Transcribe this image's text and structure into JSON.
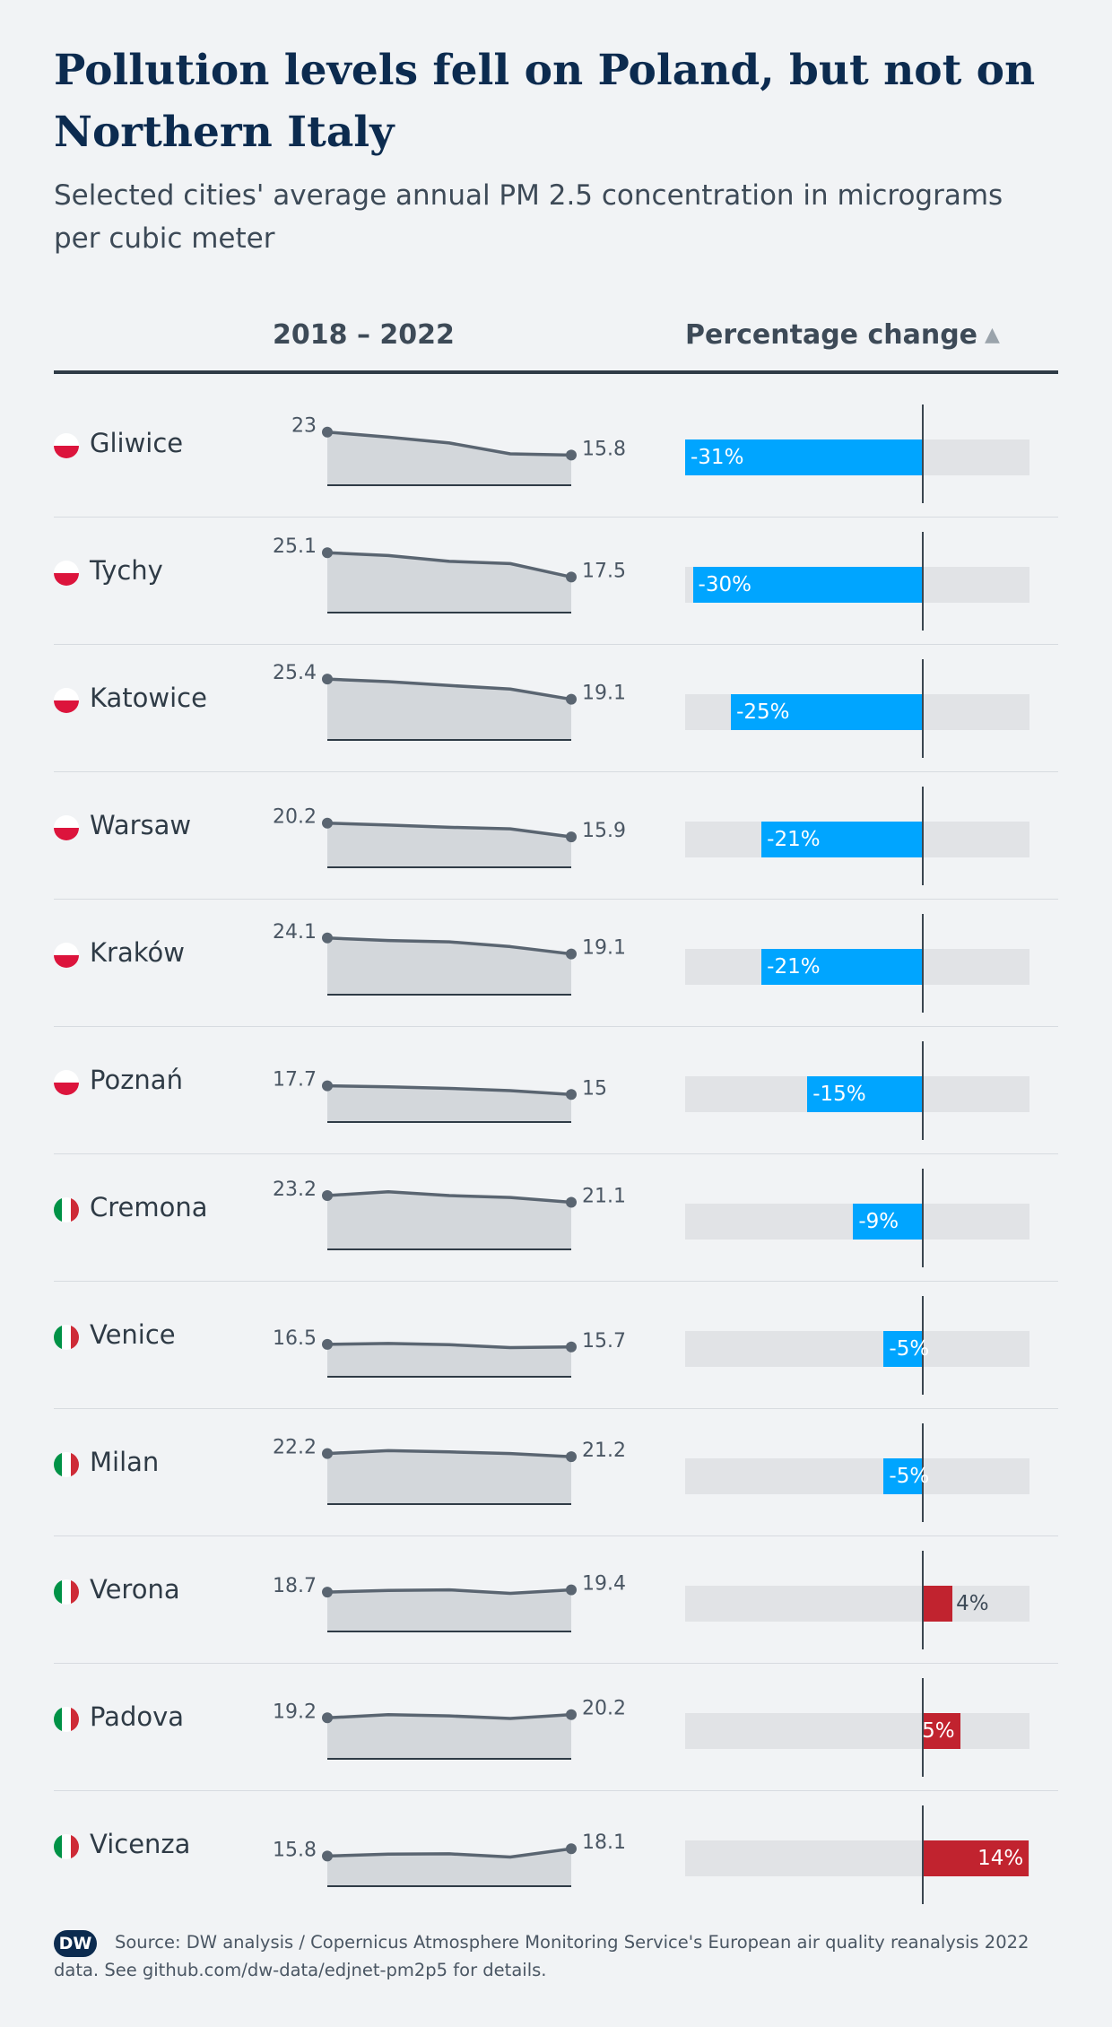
{
  "title": "Pollution levels fell on Poland, but not on Northern Italy",
  "subtitle": "Selected cities' average annual PM 2.5 concentration in micrograms per cubic meter",
  "columns": {
    "trend": "2018 – 2022",
    "change": "Percentage change",
    "sort_icon": "triangle-up-icon"
  },
  "colors": {
    "decrease": "#00a5ff",
    "increase": "#c1232f",
    "area": "#d3d7db",
    "line": "#5a6571",
    "title": "#0c2b4f"
  },
  "chart_data": {
    "type": "line",
    "x": [
      2018,
      2019,
      2020,
      2021,
      2022
    ],
    "axis_label": "2018 – 2022",
    "series": [
      {
        "name": "Gliwice",
        "country": "Poland",
        "flag": "poland-flag-icon",
        "values": [
          23,
          21.4,
          19.6,
          16.2,
          15.8
        ],
        "start_label": "23",
        "end_label": "15.8",
        "change": -31,
        "change_label": "-31%"
      },
      {
        "name": "Tychy",
        "country": "Poland",
        "flag": "poland-flag-icon",
        "values": [
          25.1,
          24.2,
          22.4,
          21.7,
          17.5
        ],
        "start_label": "25.1",
        "end_label": "17.5",
        "change": -30,
        "change_label": "-30%"
      },
      {
        "name": "Katowice",
        "country": "Poland",
        "flag": "poland-flag-icon",
        "values": [
          25.4,
          24.6,
          23.4,
          22.3,
          19.1
        ],
        "start_label": "25.4",
        "end_label": "19.1",
        "change": -25,
        "change_label": "-25%"
      },
      {
        "name": "Warsaw",
        "country": "Poland",
        "flag": "poland-flag-icon",
        "values": [
          20.2,
          19.6,
          18.9,
          18.4,
          15.9
        ],
        "start_label": "20.2",
        "end_label": "15.9",
        "change": -21,
        "change_label": "-21%"
      },
      {
        "name": "Kraków",
        "country": "Poland",
        "flag": "poland-flag-icon",
        "values": [
          24.1,
          23.3,
          22.9,
          21.4,
          19.1
        ],
        "start_label": "24.1",
        "end_label": "19.1",
        "change": -21,
        "change_label": "-21%"
      },
      {
        "name": "Poznań",
        "country": "Poland",
        "flag": "poland-flag-icon",
        "values": [
          17.7,
          17.4,
          16.9,
          16.2,
          15
        ],
        "start_label": "17.7",
        "end_label": "15",
        "change": -15,
        "change_label": "-15%"
      },
      {
        "name": "Cremona",
        "country": "Italy",
        "flag": "italy-flag-icon",
        "values": [
          23.2,
          24.4,
          23.2,
          22.6,
          21.1
        ],
        "start_label": "23.2",
        "end_label": "21.1",
        "change": -9,
        "change_label": "-9%"
      },
      {
        "name": "Venice",
        "country": "Italy",
        "flag": "italy-flag-icon",
        "values": [
          16.5,
          16.8,
          16.4,
          15.5,
          15.7
        ],
        "start_label": "16.5",
        "end_label": "15.7",
        "change": -5,
        "change_label": "-5%"
      },
      {
        "name": "Milan",
        "country": "Italy",
        "flag": "italy-flag-icon",
        "values": [
          22.2,
          23.1,
          22.7,
          22.2,
          21.2
        ],
        "start_label": "22.2",
        "end_label": "21.2",
        "change": -5,
        "change_label": "-5%"
      },
      {
        "name": "Verona",
        "country": "Italy",
        "flag": "italy-flag-icon",
        "values": [
          18.7,
          19.2,
          19.4,
          18.3,
          19.4
        ],
        "start_label": "18.7",
        "end_label": "19.4",
        "change": 4,
        "change_label": "4%"
      },
      {
        "name": "Padova",
        "country": "Italy",
        "flag": "italy-flag-icon",
        "values": [
          19.2,
          20.2,
          19.8,
          19.0,
          20.2
        ],
        "start_label": "19.2",
        "end_label": "20.2",
        "change": 5,
        "change_label": "5%"
      },
      {
        "name": "Vicenza",
        "country": "Italy",
        "flag": "italy-flag-icon",
        "values": [
          15.8,
          16.4,
          16.5,
          15.5,
          18.1
        ],
        "start_label": "15.8",
        "end_label": "18.1",
        "change": 14,
        "change_label": "14%"
      }
    ],
    "change_scale": [
      -31,
      14
    ],
    "change_unit": "%"
  },
  "footer": {
    "logo": "DW",
    "source": "Source: DW analysis / Copernicus Atmosphere Monitoring Service's European air quality reanalysis 2022 data. See github.com/dw-data/edjnet-pm2p5 for details."
  }
}
